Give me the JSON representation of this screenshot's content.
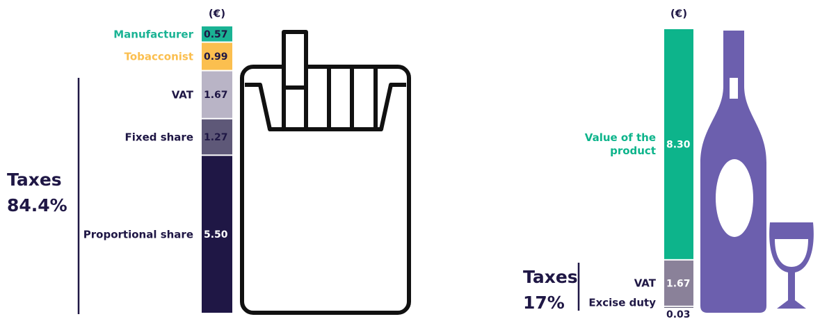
{
  "chart_data": [
    {
      "type": "stacked-bar",
      "unit": "(€)",
      "annotation": {
        "title": "Taxes",
        "value": "84.4%"
      },
      "series": [
        {
          "name": "Manufacturer",
          "color": "#1ab394",
          "label_color": "#1ab394",
          "values": [
            0.57
          ],
          "value_labels": [
            "0.57"
          ]
        },
        {
          "name": "Tobacconist",
          "color": "#fbbf4f",
          "label_color": "#fbbf4f",
          "values": [
            0.99
          ],
          "value_labels": [
            "0.99"
          ]
        },
        {
          "name": "VAT",
          "color": "#b9b4c6",
          "label_color": "#1f1745",
          "values": [
            1.67
          ],
          "value_labels": [
            "1.67"
          ]
        },
        {
          "name": "Fixed share",
          "color": "#5e5878",
          "label_color": "#1f1745",
          "values": [
            1.27
          ],
          "value_labels": [
            "1.27"
          ]
        },
        {
          "name": "Proportional share",
          "color": "#1f1745",
          "label_color": "#1f1745",
          "values": [
            5.5
          ],
          "value_labels": [
            "5.50"
          ]
        }
      ]
    },
    {
      "type": "stacked-bar",
      "unit": "(€)",
      "annotation": {
        "title": "Taxes",
        "value": "17%"
      },
      "series": [
        {
          "name": "Value of the product",
          "color": "#0db48b",
          "label_color": "#0db48b",
          "values": [
            8.3
          ],
          "value_labels": [
            "8.30"
          ]
        },
        {
          "name": "VAT",
          "color": "#8a8199",
          "label_color": "#1f1745",
          "values": [
            1.67
          ],
          "value_labels": [
            "1.67"
          ]
        },
        {
          "name": "Excise duty",
          "color": "#4a4560",
          "label_color": "#1f1745",
          "values": [
            0.03
          ],
          "value_labels": [
            "0.03"
          ]
        }
      ]
    }
  ]
}
